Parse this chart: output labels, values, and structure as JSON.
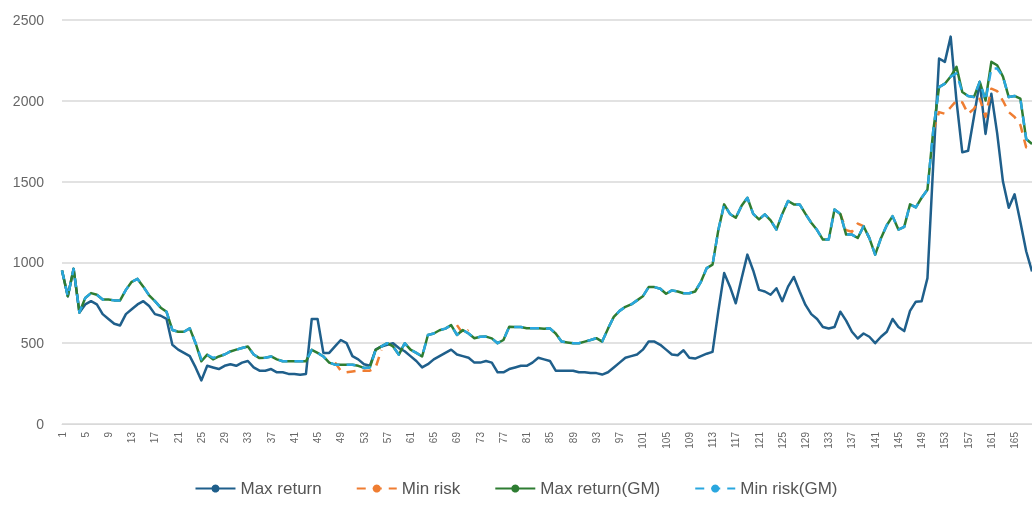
{
  "chart_data": {
    "type": "line",
    "categories": [
      "1",
      null,
      null,
      null,
      "5",
      null,
      null,
      null,
      "9",
      null,
      null,
      null,
      "13",
      null,
      null,
      null,
      "17",
      null,
      null,
      null,
      "21",
      null,
      null,
      null,
      "25",
      null,
      null,
      null,
      "29",
      null,
      null,
      null,
      "33",
      null,
      null,
      null,
      "37",
      null,
      null,
      null,
      "41",
      null,
      null,
      null,
      "45",
      null,
      null,
      null,
      "49",
      null,
      null,
      null,
      "53",
      null,
      null,
      null,
      "57",
      null,
      null,
      null,
      "61",
      null,
      null,
      null,
      "65",
      null,
      null,
      null,
      "69",
      null,
      null,
      null,
      "73",
      null,
      null,
      null,
      "77",
      null,
      null,
      null,
      "81",
      null,
      null,
      null,
      "85",
      null,
      null,
      null,
      "89",
      null,
      null,
      null,
      "93",
      null,
      null,
      null,
      "97",
      null,
      null,
      null,
      "101",
      null,
      null,
      null,
      "105",
      null,
      null,
      null,
      "109",
      null,
      null,
      null,
      "113",
      null,
      null,
      null,
      "117",
      null,
      null,
      null,
      "121",
      null,
      null,
      null,
      "125",
      null,
      null,
      null,
      "129",
      null,
      null,
      null,
      "133",
      null,
      null,
      null,
      "137",
      null,
      null,
      null,
      "141",
      null,
      null,
      null,
      "145",
      null,
      null,
      null,
      "149",
      null,
      null,
      null,
      "153",
      null,
      null,
      null,
      "157",
      null,
      null,
      null,
      "161",
      null,
      null,
      null,
      "165",
      null,
      null,
      null
    ],
    "ylim": [
      0,
      2500
    ],
    "yticks": [
      0,
      500,
      1000,
      1500,
      2000,
      2500
    ],
    "grid": "y",
    "legend": "bottom",
    "marker": "none",
    "series": [
      {
        "name": "Max return",
        "color": "#1f5f8b",
        "line_style": "solid",
        "values": [
          950,
          790,
          960,
          690,
          740,
          760,
          740,
          680,
          650,
          620,
          610,
          680,
          710,
          740,
          760,
          730,
          680,
          670,
          650,
          490,
          460,
          440,
          420,
          350,
          270,
          360,
          350,
          340,
          360,
          370,
          360,
          380,
          390,
          350,
          330,
          330,
          340,
          320,
          320,
          310,
          310,
          305,
          310,
          650,
          650,
          440,
          440,
          480,
          520,
          500,
          420,
          400,
          370,
          360,
          460,
          480,
          490,
          500,
          470,
          450,
          420,
          390,
          350,
          370,
          400,
          420,
          440,
          460,
          430,
          420,
          410,
          380,
          380,
          390,
          380,
          320,
          320,
          340,
          350,
          360,
          360,
          380,
          410,
          400,
          390,
          330,
          330,
          330,
          330,
          320,
          320,
          315,
          315,
          306,
          320,
          350,
          380,
          410,
          420,
          430,
          460,
          510,
          510,
          490,
          460,
          430,
          425,
          456,
          410,
          405,
          420,
          435,
          446,
          700,
          934,
          850,
          747,
          900,
          1048,
          950,
          830,
          820,
          800,
          840,
          760,
          850,
          910,
          820,
          737,
          680,
          650,
          600,
          591,
          600,
          695,
          640,
          571,
          529,
          560,
          540,
          500,
          540,
          571,
          650,
          600,
          575,
          700,
          757,
          760,
          903,
          1608,
          2262,
          2241,
          2397,
          2000,
          1681,
          1691,
          1900,
          2117,
          1795,
          2044,
          1800,
          1500,
          1338,
          1421,
          1250,
          1069,
          944
        ]
      },
      {
        "name": "Min risk",
        "color": "#ef7d32",
        "line_style": "dashed",
        "values": [
          null,
          null,
          null,
          null,
          null,
          null,
          null,
          null,
          null,
          null,
          null,
          null,
          null,
          null,
          null,
          null,
          null,
          null,
          null,
          null,
          null,
          null,
          null,
          null,
          null,
          null,
          null,
          null,
          null,
          null,
          null,
          null,
          null,
          null,
          null,
          null,
          null,
          null,
          null,
          null,
          null,
          null,
          null,
          null,
          null,
          null,
          null,
          380,
          330,
          320,
          325,
          330,
          330,
          330,
          350,
          459,
          null,
          null,
          null,
          null,
          null,
          null,
          null,
          null,
          null,
          null,
          null,
          null,
          612,
          560,
          582,
          null,
          null,
          null,
          null,
          null,
          null,
          null,
          null,
          null,
          null,
          null,
          null,
          null,
          null,
          null,
          null,
          null,
          null,
          null,
          null,
          null,
          null,
          null,
          null,
          null,
          null,
          null,
          null,
          null,
          null,
          null,
          null,
          null,
          null,
          null,
          null,
          null,
          null,
          null,
          null,
          null,
          null,
          null,
          null,
          null,
          null,
          null,
          null,
          null,
          null,
          null,
          null,
          null,
          null,
          null,
          null,
          null,
          null,
          null,
          null,
          null,
          null,
          null,
          1300,
          1200,
          1190,
          1240,
          1224,
          1150,
          null,
          null,
          null,
          null,
          null,
          null,
          null,
          null,
          null,
          null,
          1815,
          1930,
          1920,
          1960,
          2002,
          1990,
          1920,
          1950,
          2013,
          1900,
          2075,
          2060,
          2000,
          1930,
          1900,
          1850,
          1712,
          1700
        ]
      },
      {
        "name": "Max return(GM)",
        "color": "#2e7d32",
        "line_style": "solid",
        "values": [
          950,
          790,
          960,
          690,
          780,
          810,
          800,
          770,
          770,
          765,
          765,
          830,
          880,
          898,
          850,
          796,
          760,
          720,
          694,
          582,
          571,
          571,
          592,
          500,
          388,
          429,
          400,
          418,
          430,
          449,
          460,
          470,
          480,
          430,
          408,
          410,
          418,
          400,
          388,
          388,
          388,
          388,
          388,
          459,
          440,
          418,
          380,
          367,
          367,
          367,
          367,
          360,
          347,
          350,
          459,
          480,
          500,
          480,
          429,
          500,
          460,
          440,
          418,
          551,
          560,
          580,
          590,
          612,
          551,
          582,
          560,
          531,
          540,
          541,
          530,
          500,
          520,
          602,
          600,
          600,
          592,
          592,
          592,
          590,
          592,
          560,
          510,
          505,
          500,
          500,
          510,
          520,
          531,
          510,
          590,
          663,
          700,
          725,
          740,
          765,
          790,
          847,
          847,
          837,
          806,
          827,
          820,
          809,
          809,
          820,
          880,
          965,
          986,
          1200,
          1359,
          1300,
          1276,
          1350,
          1400,
          1300,
          1266,
          1297,
          1260,
          1203,
          1300,
          1380,
          1359,
          1359,
          1300,
          1245,
          1200,
          1141,
          1141,
          1328,
          1300,
          1172,
          1172,
          1151,
          1224,
          1150,
          1048,
          1150,
          1230,
          1286,
          1203,
          1220,
          1359,
          1340,
          1400,
          1450,
          1815,
          2085,
          2106,
          2150,
          2210,
          2054,
          2030,
          2023,
          2117,
          2002,
          2241,
          2220,
          2150,
          2023,
          2030,
          2013,
          1764,
          1733
        ]
      },
      {
        "name": "Min risk(GM)",
        "color": "#2aa7df",
        "line_style": "dashed",
        "values": [
          950,
          790,
          960,
          690,
          780,
          810,
          800,
          770,
          770,
          765,
          765,
          830,
          880,
          898,
          850,
          796,
          760,
          720,
          694,
          582,
          571,
          571,
          592,
          500,
          400,
          429,
          410,
          418,
          430,
          449,
          460,
          470,
          480,
          430,
          408,
          410,
          418,
          400,
          388,
          388,
          388,
          388,
          388,
          459,
          440,
          418,
          380,
          367,
          367,
          367,
          367,
          360,
          347,
          350,
          459,
          480,
          500,
          480,
          429,
          500,
          460,
          440,
          418,
          551,
          560,
          580,
          590,
          612,
          551,
          582,
          560,
          531,
          540,
          541,
          530,
          500,
          520,
          602,
          600,
          600,
          592,
          592,
          592,
          590,
          592,
          560,
          510,
          505,
          500,
          500,
          510,
          520,
          531,
          510,
          590,
          663,
          700,
          725,
          740,
          765,
          790,
          847,
          847,
          837,
          806,
          827,
          820,
          809,
          809,
          820,
          880,
          965,
          986,
          1200,
          1359,
          1300,
          1276,
          1350,
          1400,
          1300,
          1266,
          1297,
          1260,
          1203,
          1300,
          1380,
          1359,
          1359,
          1300,
          1245,
          1200,
          1141,
          1141,
          1328,
          1300,
          1172,
          1172,
          1151,
          1224,
          1150,
          1048,
          1150,
          1230,
          1286,
          1203,
          1220,
          1359,
          1340,
          1400,
          1450,
          1815,
          2085,
          2106,
          2150,
          2170,
          2054,
          2030,
          2023,
          2117,
          2002,
          2200,
          2200,
          2150,
          2023,
          2030,
          2013,
          1764,
          1733
        ]
      }
    ]
  }
}
